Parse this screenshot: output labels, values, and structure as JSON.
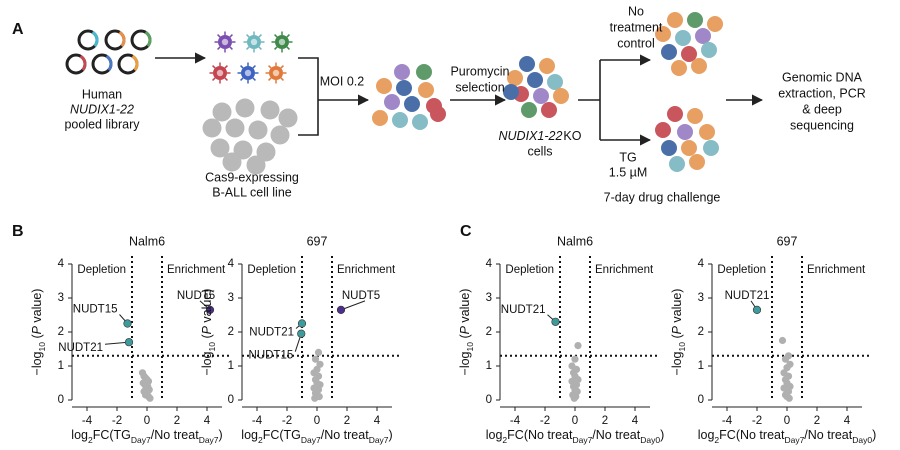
{
  "panel_labels": [
    "A",
    "B",
    "C"
  ],
  "diagram": {
    "library": [
      "Human",
      "NUDIX1-22",
      "pooled library"
    ],
    "cell_line": [
      "Cas9-expressing",
      "B-ALL cell line"
    ],
    "moi": "MOI 0.2",
    "selection": [
      "Puromycin",
      "selection"
    ],
    "ko_gene": "NUDIX1-22",
    "ko_suffix": "KO",
    "ko_cells": "cells",
    "control": [
      "No",
      "treatment",
      "control"
    ],
    "drug": [
      "TG",
      "1.5 µM"
    ],
    "challenge": "7-day drug challenge",
    "readout": [
      "Genomic DNA",
      "extraction, PCR",
      "& deep",
      "sequencing"
    ]
  },
  "chart_data": [
    {
      "type": "scatter",
      "title": "Nalm6",
      "xlabel": [
        {
          "text": "log"
        },
        {
          "text": "2",
          "style": "sub"
        },
        {
          "text": "FC(TG"
        },
        {
          "text": "Day7",
          "style": "sub"
        },
        {
          "text": "/No treat"
        },
        {
          "text": "Day7",
          "style": "sub"
        },
        {
          "text": ")"
        }
      ],
      "ylabel": [
        {
          "text": "−log"
        },
        {
          "text": "10",
          "style": "sub"
        },
        {
          "text": " ("
        },
        {
          "text": "P",
          "style": "italic"
        },
        {
          "text": " value)"
        }
      ],
      "xlim": [
        -5,
        5
      ],
      "xticks": [
        -4,
        -2,
        0,
        2,
        4
      ],
      "ylim": [
        0,
        4
      ],
      "yticks": [
        0,
        1,
        2,
        3,
        4
      ],
      "vlines": [
        -1,
        1
      ],
      "hline": 1.3,
      "annotations": [
        "Depletion",
        "Enrichment"
      ],
      "annotation_colors": [
        "#3f9a9c",
        "#4b2f8a"
      ],
      "points": {
        "color": "#b0b0b0",
        "x": [
          -0.3,
          -0.2,
          -0.1,
          0,
          0.1,
          -0.25,
          -0.15,
          0.05,
          -0.05,
          0.15,
          -0.2,
          0,
          -0.1,
          0.1,
          0.2
        ],
        "y": [
          0.8,
          0.7,
          0.65,
          0.6,
          0.55,
          0.5,
          0.45,
          0.4,
          0.35,
          0.3,
          0.25,
          0.2,
          0.15,
          0.1,
          0.05
        ]
      },
      "highlights": [
        {
          "label": "NUDT15",
          "x": -1.3,
          "y": 2.25,
          "color": "#3f9a9c"
        },
        {
          "label": "NUDT21",
          "x": -1.2,
          "y": 1.7,
          "color": "#3f9a9c"
        },
        {
          "label": "NUDT5",
          "x": 4.2,
          "y": 2.65,
          "color": "#4b2f8a"
        }
      ]
    },
    {
      "type": "scatter",
      "title": "697",
      "xlabel": [
        {
          "text": "log"
        },
        {
          "text": "2",
          "style": "sub"
        },
        {
          "text": "FC(TG"
        },
        {
          "text": "Day7",
          "style": "sub"
        },
        {
          "text": "/No treat"
        },
        {
          "text": "Day7",
          "style": "sub"
        },
        {
          "text": ")"
        }
      ],
      "ylabel": [
        {
          "text": "−log"
        },
        {
          "text": "10",
          "style": "sub"
        },
        {
          "text": " ("
        },
        {
          "text": "P",
          "style": "italic"
        },
        {
          "text": " value)"
        }
      ],
      "xlim": [
        -5,
        5
      ],
      "xticks": [
        -4,
        -2,
        0,
        2,
        4
      ],
      "ylim": [
        0,
        4
      ],
      "yticks": [
        0,
        1,
        2,
        3,
        4
      ],
      "vlines": [
        -1,
        1
      ],
      "hline": 1.3,
      "annotations": [
        "Depletion",
        "Enrichment"
      ],
      "annotation_colors": [
        "#3f9a9c",
        "#4b2f8a"
      ],
      "points": {
        "color": "#b0b0b0",
        "x": [
          0.1,
          -0.1,
          0.2,
          0,
          -0.2,
          0.1,
          -0.1,
          0,
          0.2,
          -0.2,
          0.1,
          -0.1,
          0,
          0.15,
          -0.15
        ],
        "y": [
          1.4,
          1.2,
          1.05,
          0.9,
          0.8,
          0.7,
          0.6,
          0.5,
          0.45,
          0.35,
          0.3,
          0.2,
          0.15,
          0.1,
          0.05
        ]
      },
      "highlights": [
        {
          "label": "NUDT21",
          "x": -1.0,
          "y": 2.25,
          "color": "#3f9a9c"
        },
        {
          "label": "NUDT15",
          "x": -1.05,
          "y": 1.95,
          "color": "#3f9a9c"
        },
        {
          "label": "NUDT5",
          "x": 1.6,
          "y": 2.65,
          "color": "#4b2f8a"
        }
      ]
    },
    {
      "type": "scatter",
      "title": "Nalm6",
      "xlabel": [
        {
          "text": "log"
        },
        {
          "text": "2",
          "style": "sub"
        },
        {
          "text": "FC(No treat"
        },
        {
          "text": "Day7",
          "style": "sub"
        },
        {
          "text": "/No treat"
        },
        {
          "text": "Day0",
          "style": "sub"
        },
        {
          "text": ")"
        }
      ],
      "ylabel": [
        {
          "text": "−log"
        },
        {
          "text": "10",
          "style": "sub"
        },
        {
          "text": " ("
        },
        {
          "text": "P",
          "style": "italic"
        },
        {
          "text": " value)"
        }
      ],
      "xlim": [
        -5,
        5
      ],
      "xticks": [
        -4,
        -2,
        0,
        2,
        4
      ],
      "ylim": [
        0,
        4
      ],
      "yticks": [
        0,
        1,
        2,
        3,
        4
      ],
      "vlines": [
        -1,
        1
      ],
      "hline": 1.3,
      "annotations": [
        "Depletion",
        "Enrichment"
      ],
      "annotation_colors": [
        "#3f9a9c",
        "#4b2f8a"
      ],
      "points": {
        "color": "#b0b0b0",
        "x": [
          0.2,
          0,
          -0.2,
          0.1,
          -0.1,
          0,
          0.2,
          -0.2,
          0.1,
          -0.1,
          0,
          0.15,
          -0.15,
          0.05,
          -0.05
        ],
        "y": [
          1.6,
          1.2,
          1.0,
          0.9,
          0.8,
          0.7,
          0.6,
          0.55,
          0.45,
          0.4,
          0.3,
          0.25,
          0.15,
          0.1,
          0.05
        ]
      },
      "highlights": [
        {
          "label": "NUDT21",
          "x": -1.3,
          "y": 2.3,
          "color": "#3f9a9c"
        }
      ]
    },
    {
      "type": "scatter",
      "title": "697",
      "xlabel": [
        {
          "text": "log"
        },
        {
          "text": "2",
          "style": "sub"
        },
        {
          "text": "FC(No treat"
        },
        {
          "text": "Day7",
          "style": "sub"
        },
        {
          "text": "/No treat"
        },
        {
          "text": "Day0",
          "style": "sub"
        },
        {
          "text": ")"
        }
      ],
      "ylabel": [
        {
          "text": "−log"
        },
        {
          "text": "10",
          "style": "sub"
        },
        {
          "text": " ("
        },
        {
          "text": "P",
          "style": "italic"
        },
        {
          "text": " value)"
        }
      ],
      "xlim": [
        -5,
        5
      ],
      "xticks": [
        -4,
        -2,
        0,
        2,
        4
      ],
      "ylim": [
        0,
        4
      ],
      "yticks": [
        0,
        1,
        2,
        3,
        4
      ],
      "vlines": [
        -1,
        1
      ],
      "hline": 1.3,
      "annotations": [
        "Depletion",
        "Enrichment"
      ],
      "annotation_colors": [
        "#3f9a9c",
        "#4b2f8a"
      ],
      "points": {
        "color": "#b0b0b0",
        "x": [
          -0.3,
          0.1,
          -0.1,
          0.2,
          0,
          -0.2,
          0.1,
          -0.1,
          0,
          0.2,
          -0.2,
          0.1,
          -0.1,
          0,
          0.15
        ],
        "y": [
          1.75,
          1.3,
          1.2,
          1.05,
          0.95,
          0.8,
          0.7,
          0.6,
          0.5,
          0.4,
          0.35,
          0.25,
          0.15,
          0.1,
          0.05
        ]
      },
      "highlights": [
        {
          "label": "NUDT21",
          "x": -2.0,
          "y": 2.65,
          "color": "#3f9a9c"
        }
      ]
    }
  ]
}
